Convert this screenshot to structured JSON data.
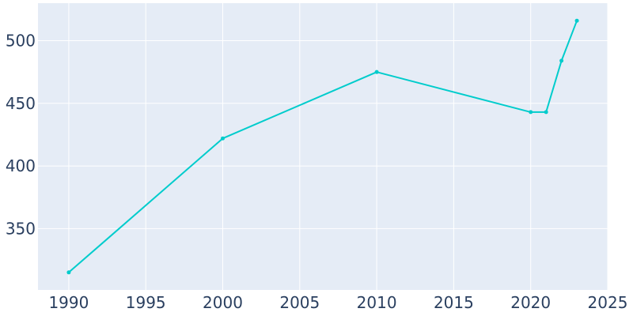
{
  "chart_data": {
    "type": "line",
    "title": "",
    "xlabel": "",
    "ylabel": "",
    "x": [
      1990,
      2000,
      2010,
      2020,
      2021,
      2022,
      2023
    ],
    "series": [
      {
        "values": [
          315,
          422,
          475,
          443,
          443,
          484,
          516
        ]
      }
    ],
    "xlim": [
      1988,
      2025
    ],
    "ylim": [
      301,
      530
    ],
    "x_ticks": [
      1990,
      1995,
      2000,
      2005,
      2010,
      2015,
      2020,
      2025
    ],
    "x_tick_labels": [
      "1990",
      "1995",
      "2000",
      "2005",
      "2010",
      "2015",
      "2020",
      "2025"
    ],
    "y_ticks": [
      350,
      400,
      450,
      500
    ],
    "y_tick_labels": [
      "350",
      "400",
      "450",
      "500"
    ],
    "grid": true,
    "legend": "none"
  },
  "style": {
    "plot_background": "#e5ecf6",
    "grid_color": "#ffffff",
    "line_color": "#00cccc",
    "text_color": "#2a3f5f"
  }
}
